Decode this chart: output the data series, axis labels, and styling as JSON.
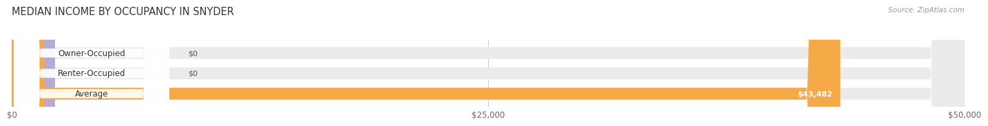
{
  "title": "MEDIAN INCOME BY OCCUPANCY IN SNYDER",
  "source": "Source: ZipAtlas.com",
  "categories": [
    "Owner-Occupied",
    "Renter-Occupied",
    "Average"
  ],
  "values": [
    0,
    0,
    43482
  ],
  "bar_colors": [
    "#6ecbca",
    "#b9a9d4",
    "#f5a947"
  ],
  "bar_bg_color": "#ebebeb",
  "value_labels": [
    "$0",
    "$0",
    "$43,482"
  ],
  "xlim": [
    0,
    50000
  ],
  "xticks": [
    0,
    25000,
    50000
  ],
  "xtick_labels": [
    "$0",
    "$25,000",
    "$50,000"
  ],
  "bar_height": 0.58,
  "background_color": "#ffffff",
  "title_fontsize": 10.5,
  "label_fontsize": 8.5,
  "value_fontsize": 8,
  "source_fontsize": 7.5
}
